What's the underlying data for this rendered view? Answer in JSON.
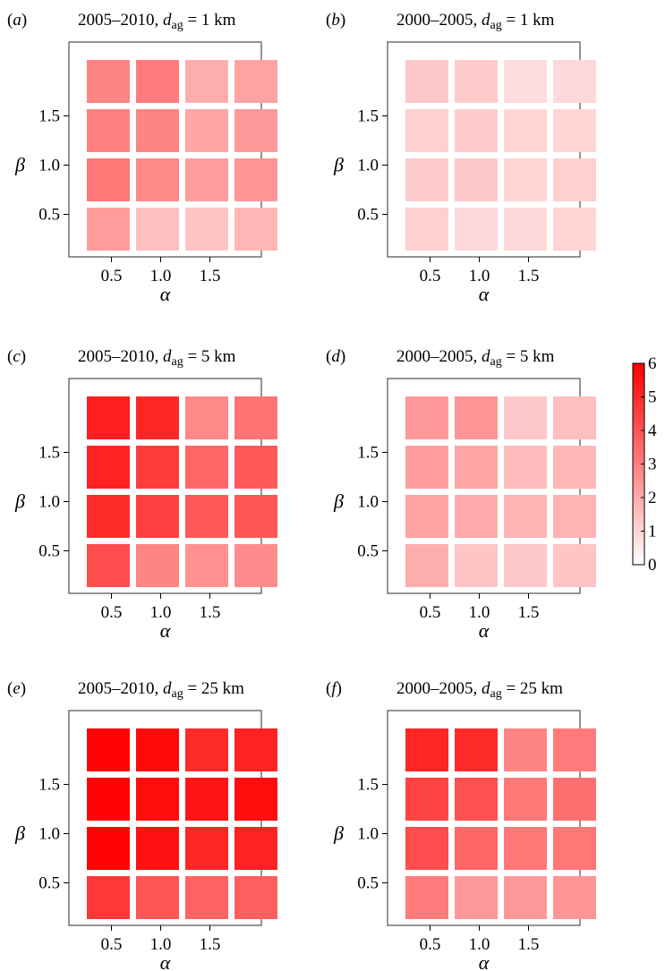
{
  "chart_data": [
    {
      "type": "heatmap",
      "panel_label": "a",
      "title_period": "2005–2010",
      "title_var": "d",
      "title_sub": "ag",
      "title_value": "= 1 km",
      "xlabel": "α",
      "ylabel": "β",
      "x": [
        0.25,
        0.75,
        1.25,
        1.75
      ],
      "y": [
        0.25,
        0.75,
        1.25,
        1.75
      ],
      "x_ticks": [
        "0.5",
        "1.0",
        "1.5"
      ],
      "y_ticks": [
        "0.5",
        "1.0",
        "1.5"
      ],
      "values": [
        [
          2.9,
          3.1,
          1.9,
          2.2
        ],
        [
          3.0,
          2.9,
          2.1,
          2.4
        ],
        [
          3.2,
          2.8,
          2.3,
          2.5
        ],
        [
          2.3,
          1.5,
          1.4,
          1.7
        ]
      ],
      "xlim": [
        0,
        2
      ],
      "ylim": [
        0,
        2
      ]
    },
    {
      "type": "heatmap",
      "panel_label": "b",
      "title_period": "2000–2005",
      "title_var": "d",
      "title_sub": "ag",
      "title_value": "= 1 km",
      "xlabel": "α",
      "ylabel": "β",
      "x": [
        0.25,
        0.75,
        1.25,
        1.75
      ],
      "y": [
        0.25,
        0.75,
        1.25,
        1.75
      ],
      "x_ticks": [
        "0.5",
        "1.0",
        "1.5"
      ],
      "y_ticks": [
        "0.5",
        "1.0",
        "1.5"
      ],
      "values": [
        [
          1.3,
          1.2,
          0.8,
          0.9
        ],
        [
          1.1,
          1.2,
          1.0,
          1.0
        ],
        [
          1.2,
          1.3,
          1.0,
          1.1
        ],
        [
          1.1,
          0.9,
          0.9,
          1.0
        ]
      ],
      "xlim": [
        0,
        2
      ],
      "ylim": [
        0,
        2
      ]
    },
    {
      "type": "heatmap",
      "panel_label": "c",
      "title_period": "2005–2010",
      "title_var": "d",
      "title_sub": "ag",
      "title_value": "= 5 km",
      "xlabel": "α",
      "ylabel": "β",
      "x": [
        0.25,
        0.75,
        1.25,
        1.75
      ],
      "y": [
        0.25,
        0.75,
        1.25,
        1.75
      ],
      "x_ticks": [
        "0.5",
        "1.0",
        "1.5"
      ],
      "y_ticks": [
        "0.5",
        "1.0",
        "1.5"
      ],
      "values": [
        [
          5.3,
          5.1,
          2.8,
          3.3
        ],
        [
          5.2,
          4.6,
          3.6,
          3.9
        ],
        [
          5.0,
          4.5,
          3.9,
          4.0
        ],
        [
          4.2,
          2.9,
          2.6,
          2.7
        ]
      ],
      "xlim": [
        0,
        2
      ],
      "ylim": [
        0,
        2
      ]
    },
    {
      "type": "heatmap",
      "panel_label": "d",
      "title_period": "2000–2005",
      "title_var": "d",
      "title_sub": "ag",
      "title_value": "= 5 km",
      "xlabel": "α",
      "ylabel": "β",
      "x": [
        0.25,
        0.75,
        1.25,
        1.75
      ],
      "y": [
        0.25,
        0.75,
        1.25,
        1.75
      ],
      "x_ticks": [
        "0.5",
        "1.0",
        "1.5"
      ],
      "y_ticks": [
        "0.5",
        "1.0",
        "1.5"
      ],
      "values": [
        [
          2.4,
          2.5,
          1.3,
          1.5
        ],
        [
          2.3,
          2.1,
          1.6,
          1.7
        ],
        [
          2.2,
          2.0,
          1.8,
          1.8
        ],
        [
          1.9,
          1.4,
          1.3,
          1.4
        ]
      ],
      "xlim": [
        0,
        2
      ],
      "ylim": [
        0,
        2
      ]
    },
    {
      "type": "heatmap",
      "panel_label": "e",
      "title_period": "2005–2010",
      "title_var": "d",
      "title_sub": "ag",
      "title_value": "= 25 km",
      "xlabel": "α",
      "ylabel": "β",
      "x": [
        0.25,
        0.75,
        1.25,
        1.75
      ],
      "y": [
        0.25,
        0.75,
        1.25,
        1.75
      ],
      "x_ticks": [
        "0.5",
        "1.0",
        "1.5"
      ],
      "y_ticks": [
        "0.5",
        "1.0",
        "1.5"
      ],
      "values": [
        [
          5.9,
          5.8,
          5.0,
          5.2
        ],
        [
          5.9,
          5.7,
          5.5,
          5.7
        ],
        [
          5.9,
          5.6,
          5.1,
          5.2
        ],
        [
          4.7,
          4.0,
          3.7,
          3.8
        ]
      ],
      "xlim": [
        0,
        2
      ],
      "ylim": [
        0,
        2
      ]
    },
    {
      "type": "heatmap",
      "panel_label": "f",
      "title_period": "2000–2005",
      "title_var": "d",
      "title_sub": "ag",
      "title_value": "= 25 km",
      "xlabel": "α",
      "ylabel": "β",
      "x": [
        0.25,
        0.75,
        1.25,
        1.75
      ],
      "y": [
        0.25,
        0.75,
        1.25,
        1.75
      ],
      "x_ticks": [
        "0.5",
        "1.0",
        "1.5"
      ],
      "y_ticks": [
        "0.5",
        "1.0",
        "1.5"
      ],
      "values": [
        [
          5.1,
          5.0,
          2.9,
          3.1
        ],
        [
          4.4,
          4.1,
          3.2,
          3.4
        ],
        [
          4.2,
          3.6,
          3.2,
          3.2
        ],
        [
          3.1,
          2.4,
          2.4,
          2.5
        ]
      ],
      "xlim": [
        0,
        2
      ],
      "ylim": [
        0,
        2
      ]
    }
  ],
  "colorbar": {
    "min": 0,
    "max": 6,
    "ticks": [
      "0",
      "1",
      "2",
      "3",
      "4",
      "5",
      "6"
    ],
    "color_low": "#ffffff",
    "color_high": "#ff0000"
  }
}
